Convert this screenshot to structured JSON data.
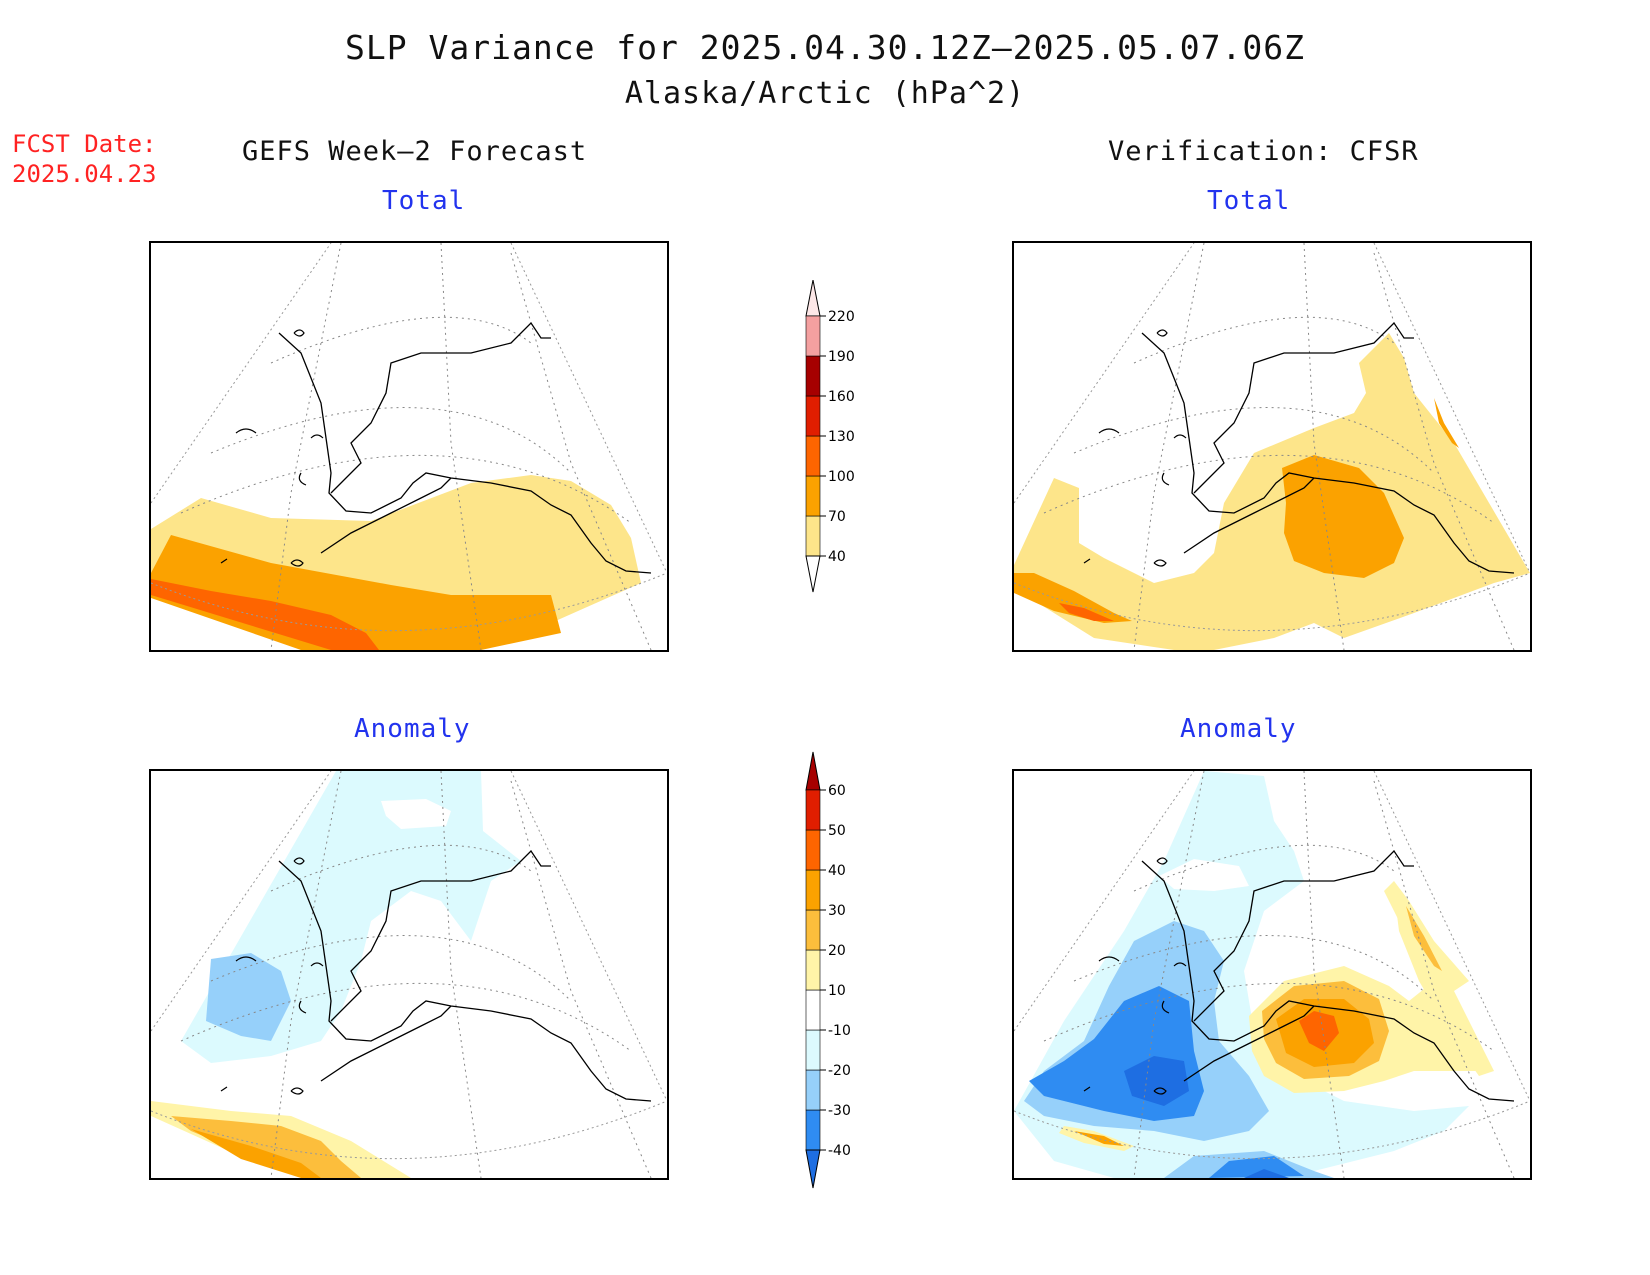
{
  "header": {
    "title": "SLP Variance for 2025.04.30.12Z–2025.05.07.06Z",
    "subtitle": "Alaska/Arctic (hPa^2)"
  },
  "forecast_date": {
    "label": "FCST Date:",
    "value": "2025.04.23"
  },
  "columns": {
    "left": "GEFS Week–2 Forecast",
    "right": "Verification: CFSR"
  },
  "panels": {
    "forecast_total": "Total",
    "verification_total": "Total",
    "forecast_anomaly": "Anomaly",
    "verification_anomaly": "Anomaly"
  },
  "colorbars": {
    "total": {
      "levels": [
        "40",
        "70",
        "100",
        "130",
        "160",
        "190",
        "220"
      ],
      "colors": [
        "#fde58a",
        "#fba200",
        "#fe6500",
        "#e01e00",
        "#a60000",
        "#f4a0a0",
        "#fde8e8"
      ]
    },
    "anomaly": {
      "levels": [
        "-40",
        "-30",
        "-20",
        "-10",
        "10",
        "20",
        "30",
        "40",
        "50",
        "60"
      ],
      "colors": [
        "#1e6ee2",
        "#2f8cf2",
        "#96d0fa",
        "#dcfafe",
        "#ffffff",
        "#fff4a8",
        "#fcbe3c",
        "#fba200",
        "#fe6500",
        "#e01e00",
        "#a60000"
      ]
    }
  },
  "palette": {
    "yellow": "#fde58a",
    "orange": "#fba200",
    "dark_orange": "#fe6500",
    "light_cyan": "#dcfafe",
    "light_blue": "#96d0fa",
    "mid_blue": "#2f8cf2",
    "blue": "#1e6ee2",
    "pale_yellow": "#fff4a8",
    "gold": "#fcbe3c",
    "title_blue": "#2233ee",
    "fcst_red": "#ff2222"
  }
}
